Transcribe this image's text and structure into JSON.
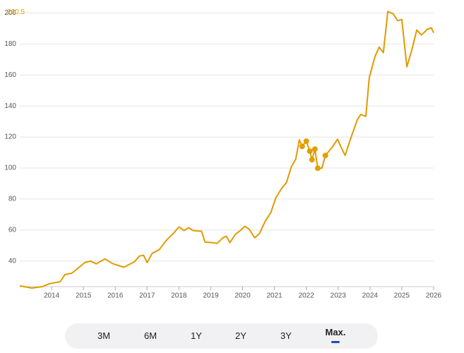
{
  "chart_data": {
    "type": "line",
    "xlim": [
      2013,
      2026
    ],
    "xticks": [
      2014,
      2015,
      2016,
      2017,
      2018,
      2019,
      2020,
      2021,
      2022,
      2023,
      2024,
      2025,
      2026
    ],
    "ylim": [
      23.5,
      202
    ],
    "yticks": [
      40,
      60,
      80,
      100,
      120,
      140,
      160,
      180,
      200
    ],
    "grid": true,
    "max_value": 200.5,
    "max_color": "#e0a000",
    "series": [
      {
        "color": "#e09b00",
        "x": [
          2013.0,
          2013.38,
          2013.71,
          2013.93,
          2014.27,
          2014.42,
          2014.64,
          2015.04,
          2015.22,
          2015.4,
          2015.67,
          2015.93,
          2016.27,
          2016.6,
          2016.76,
          2016.89,
          2017.0,
          2017.16,
          2017.38,
          2017.6,
          2017.82,
          2018.0,
          2018.16,
          2018.31,
          2018.44,
          2018.71,
          2018.82,
          2019.04,
          2019.2,
          2019.38,
          2019.49,
          2019.6,
          2019.78,
          2019.93,
          2020.07,
          2020.2,
          2020.38,
          2020.53,
          2020.71,
          2020.89,
          2021.04,
          2021.22,
          2021.38,
          2021.53,
          2021.67,
          2021.78,
          2021.87,
          2022.0,
          2022.11,
          2022.18,
          2022.27,
          2022.36,
          2022.49,
          2022.6,
          2022.82,
          2022.98,
          2023.11,
          2023.22,
          2023.38,
          2023.6,
          2023.71,
          2023.87,
          2023.98,
          2024.16,
          2024.29,
          2024.42,
          2024.56,
          2024.73,
          2024.87,
          2025.0,
          2025.16,
          2025.31,
          2025.47,
          2025.62,
          2025.8,
          2025.93,
          2026.0
        ],
        "values": [
          24,
          22.6,
          23.5,
          25.4,
          26.7,
          31.3,
          32.2,
          39,
          40,
          38.2,
          41.4,
          38.2,
          36,
          39.5,
          43.2,
          43.7,
          39,
          45,
          47.3,
          53.3,
          57.8,
          62,
          59.7,
          61.5,
          59.7,
          59.2,
          52.3,
          51.9,
          51.4,
          55,
          56,
          51.9,
          57.4,
          59.7,
          62.4,
          60.6,
          55,
          57.8,
          65.6,
          71.5,
          80.7,
          86.6,
          90.7,
          100.8,
          105.8,
          118.2,
          114,
          117.3,
          110.9,
          105.4,
          112.2,
          99.9,
          99.9,
          108.1,
          113.6,
          118.6,
          112.7,
          108.1,
          118.2,
          131,
          134.6,
          133.3,
          158.4,
          172.1,
          178,
          174.4,
          200.9,
          199.5,
          195,
          195.9,
          165.3,
          175.8,
          189,
          185.8,
          189.5,
          190.4,
          187.2
        ]
      },
      {
        "color": "#e0a000",
        "markers": true,
        "x": [
          2021.87,
          2022.0,
          2022.11,
          2022.18,
          2022.27,
          2022.36,
          2022.6
        ],
        "values": [
          114,
          117.3,
          110.9,
          105.4,
          112.2,
          99.9,
          108.1
        ]
      }
    ]
  },
  "range_buttons": {
    "options": [
      "3M",
      "6M",
      "1Y",
      "2Y",
      "3Y",
      "Max."
    ],
    "selected": 5
  }
}
